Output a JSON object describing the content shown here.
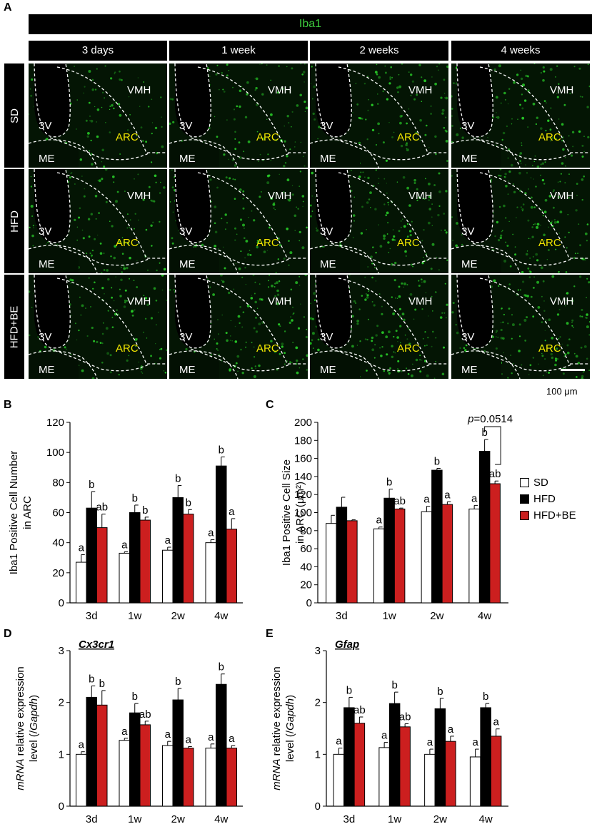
{
  "panel_a": {
    "letter": "A",
    "stain": "Iba1",
    "columns": [
      "3 days",
      "1 week",
      "2 weeks",
      "4 weeks"
    ],
    "rows": [
      "SD",
      "HFD",
      "HFD+BE"
    ],
    "region_labels": {
      "vmh": "VMH",
      "v3": "3V",
      "arc": "ARC",
      "me": "ME"
    },
    "scale_bar": "100 μm",
    "colors": {
      "header_bg": "#000000",
      "stain_text": "#3ecf3e",
      "arc_text": "#f2e600",
      "tissue": "#2bd82b"
    }
  },
  "legend": {
    "items": [
      {
        "name": "SD",
        "color": "#ffffff"
      },
      {
        "name": "HFD",
        "color": "#000000"
      },
      {
        "name": "HFD+BE",
        "color": "#cc1f1f"
      }
    ]
  },
  "chart_data": [
    {
      "panel": "B",
      "type": "bar",
      "title": "",
      "ylabel": [
        "Iba1 Positive Cell Number",
        "in ARC"
      ],
      "ylabel_italic": [],
      "categories": [
        "3d",
        "1w",
        "2w",
        "4w"
      ],
      "ylim": [
        0,
        120
      ],
      "yticks": [
        "0",
        "20",
        "40",
        "60",
        "80",
        "100",
        "120"
      ],
      "series": [
        {
          "name": "SD",
          "values": [
            27,
            33,
            35,
            40
          ],
          "errors": [
            5,
            1,
            2,
            2
          ],
          "letters": [
            "a",
            "a",
            "a",
            "a"
          ]
        },
        {
          "name": "HFD",
          "values": [
            63,
            60,
            70,
            91
          ],
          "errors": [
            11,
            5,
            8,
            6
          ],
          "letters": [
            "b",
            "b",
            "b",
            "b"
          ]
        },
        {
          "name": "HFD+BE",
          "values": [
            50,
            55,
            59,
            49
          ],
          "errors": [
            9,
            2,
            3,
            7
          ],
          "letters": [
            "ab",
            "b",
            "b",
            "a"
          ]
        }
      ]
    },
    {
      "panel": "C",
      "type": "bar",
      "title": "",
      "ylabel": [
        "Iba1 Positive Cell Size",
        "in ARC (μm²)"
      ],
      "categories": [
        "3d",
        "1w",
        "2w",
        "4w"
      ],
      "ylim": [
        0,
        200
      ],
      "yticks": [
        "0",
        "20",
        "40",
        "60",
        "80",
        "100",
        "120",
        "140",
        "160",
        "180",
        "200"
      ],
      "annotation": "p=0.0514",
      "series": [
        {
          "name": "SD",
          "values": [
            88,
            82,
            101,
            104
          ],
          "errors": [
            9,
            2,
            6,
            4
          ],
          "letters": [
            "",
            "a",
            "a",
            "a"
          ]
        },
        {
          "name": "HFD",
          "values": [
            106,
            116,
            147,
            168
          ],
          "errors": [
            11,
            10,
            2,
            13
          ],
          "letters": [
            "",
            "b",
            "b",
            "b"
          ]
        },
        {
          "name": "HFD+BE",
          "values": [
            91,
            104,
            109,
            132
          ],
          "errors": [
            1,
            1,
            3,
            3
          ],
          "letters": [
            "",
            "ab",
            "a",
            "ab"
          ]
        }
      ]
    },
    {
      "panel": "D",
      "type": "bar",
      "title": "Cx3cr1",
      "ylabel": [
        "mRNA relative expression",
        "level (/Gapdh)"
      ],
      "categories": [
        "3d",
        "1w",
        "2w",
        "4w"
      ],
      "ylim": [
        0,
        3
      ],
      "yticks": [
        "0",
        "1",
        "2",
        "3"
      ],
      "series": [
        {
          "name": "SD",
          "values": [
            1.0,
            1.27,
            1.17,
            1.12
          ],
          "errors": [
            0.05,
            0.04,
            0.08,
            0.08
          ],
          "letters": [
            "a",
            "a",
            "a",
            "a"
          ]
        },
        {
          "name": "HFD",
          "values": [
            2.1,
            1.8,
            2.05,
            2.35
          ],
          "errors": [
            0.22,
            0.18,
            0.22,
            0.2
          ],
          "letters": [
            "b",
            "b",
            "b",
            "b"
          ]
        },
        {
          "name": "HFD+BE",
          "values": [
            1.95,
            1.57,
            1.12,
            1.12
          ],
          "errors": [
            0.28,
            0.07,
            0.03,
            0.05
          ],
          "letters": [
            "b",
            "ab",
            "a",
            "a"
          ]
        }
      ]
    },
    {
      "panel": "E",
      "type": "bar",
      "title": "Gfap",
      "ylabel": [
        "mRNA relative expression",
        "level (/Gapdh)"
      ],
      "categories": [
        "3d",
        "1w",
        "2w",
        "4w"
      ],
      "ylim": [
        0,
        3
      ],
      "yticks": [
        "0",
        "1",
        "2",
        "3"
      ],
      "series": [
        {
          "name": "SD",
          "values": [
            1.0,
            1.13,
            1.0,
            0.95
          ],
          "errors": [
            0.12,
            0.1,
            0.1,
            0.15
          ],
          "letters": [
            "a",
            "a",
            "a",
            "a"
          ]
        },
        {
          "name": "HFD",
          "values": [
            1.9,
            1.98,
            1.88,
            1.9
          ],
          "errors": [
            0.2,
            0.22,
            0.2,
            0.08
          ],
          "letters": [
            "b",
            "b",
            "b",
            "b"
          ]
        },
        {
          "name": "HFD+BE",
          "values": [
            1.6,
            1.53,
            1.25,
            1.35
          ],
          "errors": [
            0.12,
            0.06,
            0.1,
            0.14
          ],
          "letters": [
            "ab",
            "ab",
            "a",
            "a"
          ]
        }
      ]
    }
  ]
}
